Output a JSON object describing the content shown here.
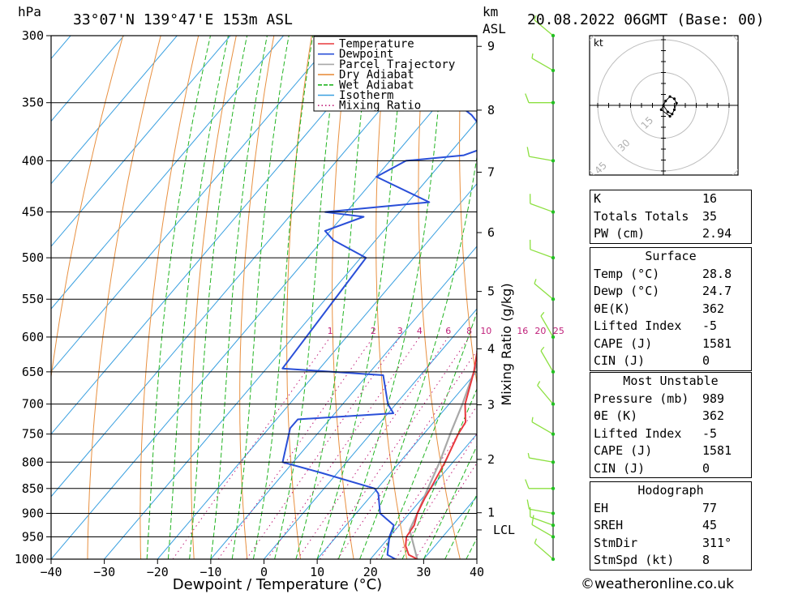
{
  "header": {
    "location": "33°07'N  139°47'E  153m  ASL",
    "valid": "20.08.2022  06GMT  (Base: 00)",
    "p_unit": "hPa",
    "km_unit": "km",
    "asl": "ASL"
  },
  "chart_data": {
    "type": "skew-T log-P",
    "xlabel": "Dewpoint / Temperature (°C)",
    "ylabel_right": "Mixing Ratio (g/kg)",
    "x_ticks": [
      -40,
      -30,
      -20,
      -10,
      0,
      10,
      20,
      30,
      40
    ],
    "p_levels": [
      300,
      350,
      400,
      450,
      500,
      550,
      600,
      650,
      700,
      750,
      800,
      850,
      900,
      950,
      1000
    ],
    "km_ticks": [
      1,
      2,
      3,
      4,
      5,
      6,
      7,
      8,
      9
    ],
    "lcl_label": "LCL",
    "lcl_pressure": 935,
    "mixing_ratio_labels": [
      "1",
      "2",
      "3",
      "4",
      "6",
      "8",
      "10",
      "16",
      "20",
      "25"
    ],
    "mixing_ratio_values": [
      1,
      2,
      3,
      4,
      6,
      8,
      10,
      16,
      20,
      25
    ],
    "legend": [
      "Temperature",
      "Dewpoint",
      "Parcel Trajectory",
      "Dry Adiabat",
      "Wet Adiabat",
      "Isotherm",
      "Mixing Ratio"
    ],
    "colors": {
      "temperature": "#e8383d",
      "dewpoint": "#2a4fd8",
      "parcel": "#a8a8a8",
      "dry_adiabat": "#e89040",
      "wet_adiabat": "#22b422",
      "isotherm": "#3aa0e0",
      "mixing_ratio": "#c0207a",
      "wind": "#8ce040"
    },
    "temperature": [
      {
        "p": 1000,
        "t": 28.8
      },
      {
        "p": 990,
        "t": 26.5
      },
      {
        "p": 970,
        "t": 24.5
      },
      {
        "p": 950,
        "t": 23.2
      },
      {
        "p": 925,
        "t": 22.8
      },
      {
        "p": 900,
        "t": 21.5
      },
      {
        "p": 870,
        "t": 20.5
      },
      {
        "p": 850,
        "t": 20.0
      },
      {
        "p": 800,
        "t": 18.5
      },
      {
        "p": 750,
        "t": 16.5
      },
      {
        "p": 730,
        "t": 16.0
      },
      {
        "p": 700,
        "t": 13.0
      },
      {
        "p": 650,
        "t": 9.5
      },
      {
        "p": 600,
        "t": 5.0
      },
      {
        "p": 550,
        "t": 0.0
      },
      {
        "p": 500,
        "t": -5.5
      },
      {
        "p": 470,
        "t": -8.5
      },
      {
        "p": 450,
        "t": -11.5
      },
      {
        "p": 400,
        "t": -18.0
      },
      {
        "p": 375,
        "t": -22.5
      },
      {
        "p": 365,
        "t": -25.0
      }
    ],
    "dewpoint": [
      {
        "p": 1000,
        "t": 24.7
      },
      {
        "p": 990,
        "t": 22.5
      },
      {
        "p": 950,
        "t": 20.0
      },
      {
        "p": 925,
        "t": 19.0
      },
      {
        "p": 900,
        "t": 14.5
      },
      {
        "p": 860,
        "t": 11.0
      },
      {
        "p": 850,
        "t": 9.5
      },
      {
        "p": 820,
        "t": -3.0
      },
      {
        "p": 800,
        "t": -12.0
      },
      {
        "p": 740,
        "t": -16.0
      },
      {
        "p": 725,
        "t": -16.0
      },
      {
        "p": 715,
        "t": 1.0
      },
      {
        "p": 700,
        "t": -1.5
      },
      {
        "p": 655,
        "t": -7.0
      },
      {
        "p": 645,
        "t": -27.0
      },
      {
        "p": 500,
        "t": -29.0
      },
      {
        "p": 480,
        "t": -38.0
      },
      {
        "p": 470,
        "t": -41.0
      },
      {
        "p": 455,
        "t": -36.0
      },
      {
        "p": 450,
        "t": -44.0
      },
      {
        "p": 440,
        "t": -26.0
      },
      {
        "p": 415,
        "t": -40.0
      },
      {
        "p": 400,
        "t": -37.0
      },
      {
        "p": 395,
        "t": -27.0
      },
      {
        "p": 385,
        "t": -23.0
      },
      {
        "p": 360,
        "t": -32.0
      },
      {
        "p": 340,
        "t": -42.0
      },
      {
        "p": 320,
        "t": -60.0
      },
      {
        "p": 300,
        "t": -57.0
      }
    ],
    "parcel": [
      {
        "p": 1000,
        "t": 28.8
      },
      {
        "p": 935,
        "t": 22.7
      },
      {
        "p": 900,
        "t": 21.5
      },
      {
        "p": 850,
        "t": 19.5
      },
      {
        "p": 800,
        "t": 17.5
      },
      {
        "p": 750,
        "t": 15.0
      },
      {
        "p": 700,
        "t": 12.5
      },
      {
        "p": 650,
        "t": 9.5
      },
      {
        "p": 600,
        "t": 6.5
      },
      {
        "p": 550,
        "t": 3.0
      },
      {
        "p": 500,
        "t": -1.0
      },
      {
        "p": 450,
        "t": -6.0
      },
      {
        "p": 400,
        "t": -12.0
      },
      {
        "p": 365,
        "t": -17.0
      }
    ],
    "wind_barbs": [
      {
        "p": 1000,
        "dir": 311,
        "spd": 8
      },
      {
        "p": 950,
        "dir": 300,
        "spd": 10
      },
      {
        "p": 925,
        "dir": 290,
        "spd": 10
      },
      {
        "p": 900,
        "dir": 280,
        "spd": 10
      },
      {
        "p": 850,
        "dir": 270,
        "spd": 10
      },
      {
        "p": 800,
        "dir": 280,
        "spd": 5
      },
      {
        "p": 750,
        "dir": 300,
        "spd": 5
      },
      {
        "p": 700,
        "dir": 320,
        "spd": 5
      },
      {
        "p": 650,
        "dir": 330,
        "spd": 5
      },
      {
        "p": 600,
        "dir": 330,
        "spd": 5
      },
      {
        "p": 550,
        "dir": 310,
        "spd": 5
      },
      {
        "p": 500,
        "dir": 290,
        "spd": 10
      },
      {
        "p": 450,
        "dir": 290,
        "spd": 10
      },
      {
        "p": 400,
        "dir": 280,
        "spd": 10
      },
      {
        "p": 350,
        "dir": 270,
        "spd": 10
      },
      {
        "p": 325,
        "dir": 300,
        "spd": 5
      },
      {
        "p": 300,
        "dir": 310,
        "spd": 5
      }
    ],
    "hodograph": {
      "unit": "kt",
      "ring_labels": [
        "15",
        "30",
        "45"
      ],
      "ring_values": [
        15,
        30,
        45
      ],
      "points": [
        {
          "u": 0,
          "v": 0
        },
        {
          "u": 2,
          "v": -3
        },
        {
          "u": 4,
          "v": -4
        },
        {
          "u": 5,
          "v": -2
        },
        {
          "u": 6,
          "v": 1
        },
        {
          "u": 5,
          "v": 3
        },
        {
          "u": 3,
          "v": 4
        },
        {
          "u": 1,
          "v": 2
        },
        {
          "u": -1,
          "v": -2
        },
        {
          "u": 3,
          "v": -5
        }
      ]
    }
  },
  "indices": [
    {
      "label": "K",
      "value": "16"
    },
    {
      "label": "Totals Totals",
      "value": "35"
    },
    {
      "label": "PW (cm)",
      "value": "2.94"
    }
  ],
  "surface": {
    "title": "Surface",
    "rows": [
      {
        "label": "Temp (°C)",
        "value": "28.8"
      },
      {
        "label": "Dewp (°C)",
        "value": "24.7"
      },
      {
        "label": "θE(K)",
        "value": "362"
      },
      {
        "label": "Lifted Index",
        "value": "-5"
      },
      {
        "label": "CAPE (J)",
        "value": "1581"
      },
      {
        "label": "CIN (J)",
        "value": "0"
      }
    ]
  },
  "most_unstable": {
    "title": "Most Unstable",
    "rows": [
      {
        "label": "Pressure (mb)",
        "value": "989"
      },
      {
        "label": "θE (K)",
        "value": "362"
      },
      {
        "label": "Lifted Index",
        "value": "-5"
      },
      {
        "label": "CAPE (J)",
        "value": "1581"
      },
      {
        "label": "CIN (J)",
        "value": "0"
      }
    ]
  },
  "hodograph_table": {
    "title": "Hodograph",
    "rows": [
      {
        "label": "EH",
        "value": "77"
      },
      {
        "label": "SREH",
        "value": "45"
      },
      {
        "label": "StmDir",
        "value": "311°"
      },
      {
        "label": "StmSpd (kt)",
        "value": "8"
      }
    ]
  },
  "credit": "©weatheronline.co.uk"
}
